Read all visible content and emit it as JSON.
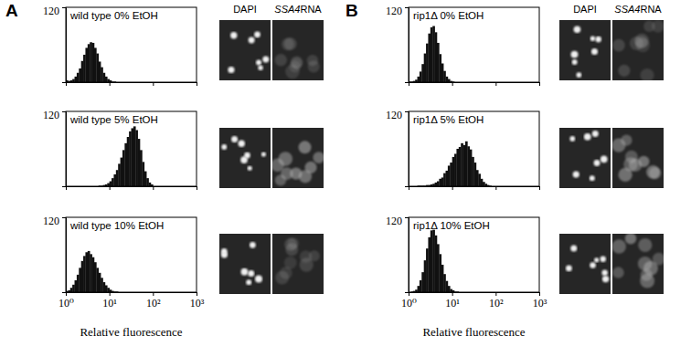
{
  "figure": {
    "panels": [
      {
        "label": "A",
        "image_headers": [
          "DAPI",
          "SSA4 RNA"
        ]
      },
      {
        "label": "B",
        "image_headers": [
          "DAPI",
          "SSA4 RNA"
        ]
      }
    ]
  },
  "chart_data": [
    {
      "type": "histogram",
      "title": "wild type 0% EtOH",
      "color": "#111111",
      "log": "x",
      "bins": [
        1,
        1.122,
        1.259,
        1.413,
        1.585,
        1.778,
        1.995,
        2.239,
        2.512,
        2.818,
        3.162,
        3.548,
        3.981,
        4.467,
        5.012,
        5.623,
        6.31,
        7.079,
        7.943,
        8.913,
        10,
        11.22,
        12.59,
        14.13,
        15.85,
        17.78,
        19.95,
        22.39,
        25.12,
        28.18,
        31.62,
        35.48,
        39.81,
        44.67,
        50.12,
        56.23,
        63.1,
        70.79,
        79.43,
        89.13,
        100
      ],
      "counts": [
        3,
        2,
        3,
        5,
        9,
        15,
        22,
        34,
        44,
        55,
        61,
        64,
        63,
        55,
        46,
        33,
        24,
        15,
        9,
        5,
        3,
        1,
        1,
        0,
        0,
        0,
        0,
        0,
        0,
        0,
        0,
        0,
        0,
        0,
        0,
        0,
        0,
        0,
        0,
        0
      ],
      "xlim": [
        1,
        1000
      ],
      "ylim": [
        0,
        120
      ],
      "xticks": [
        1,
        10,
        100,
        1000
      ],
      "yticks": [
        120
      ],
      "tick_labels": "y"
    },
    {
      "type": "histogram",
      "title": "wild type 5% EtOH",
      "color": "#111111",
      "log": "x",
      "bins": [
        1,
        1.122,
        1.259,
        1.413,
        1.585,
        1.778,
        1.995,
        2.239,
        2.512,
        2.818,
        3.162,
        3.548,
        3.981,
        4.467,
        5.012,
        5.623,
        6.31,
        7.079,
        7.943,
        8.913,
        10,
        11.22,
        12.59,
        14.13,
        15.85,
        17.78,
        19.95,
        22.39,
        25.12,
        28.18,
        31.62,
        35.48,
        39.81,
        44.67,
        50.12,
        56.23,
        63.1,
        70.79,
        79.43,
        89.13,
        100
      ],
      "counts": [
        0,
        0,
        0,
        0,
        0,
        0,
        0,
        0,
        0,
        0,
        0,
        0,
        0,
        0,
        0,
        1,
        1,
        2,
        3,
        5,
        8,
        13,
        19,
        26,
        36,
        46,
        58,
        69,
        79,
        88,
        93,
        96,
        90,
        76,
        58,
        39,
        24,
        13,
        6,
        3
      ],
      "xlim": [
        1,
        1000
      ],
      "ylim": [
        0,
        120
      ],
      "xticks": [
        1,
        10,
        100,
        1000
      ],
      "yticks": [
        120
      ],
      "tick_labels": "y"
    },
    {
      "type": "histogram",
      "title": "wild type 10% EtOH",
      "color": "#111111",
      "log": "x",
      "bins": [
        1,
        1.122,
        1.259,
        1.413,
        1.585,
        1.778,
        1.995,
        2.239,
        2.512,
        2.818,
        3.162,
        3.548,
        3.981,
        4.467,
        5.012,
        5.623,
        6.31,
        7.079,
        7.943,
        8.913,
        10,
        11.22,
        12.59,
        14.13,
        15.85,
        17.78,
        19.95,
        22.39,
        25.12,
        28.18,
        31.62,
        35.48,
        39.81,
        44.67,
        50.12,
        56.23,
        63.1,
        70.79,
        79.43,
        89.13,
        100
      ],
      "counts": [
        2,
        3,
        7,
        12,
        19,
        28,
        39,
        50,
        58,
        64,
        66,
        61,
        56,
        48,
        39,
        31,
        23,
        16,
        11,
        7,
        4,
        2,
        1,
        1,
        0,
        0,
        0,
        0,
        0,
        0,
        0,
        0,
        0,
        0,
        0,
        0,
        0,
        0,
        0,
        0
      ],
      "xlim": [
        1,
        1000
      ],
      "ylim": [
        0,
        120
      ],
      "xticks": [
        {
          "value": 1,
          "label": "10⁰"
        },
        {
          "value": 10,
          "label": "10¹"
        },
        {
          "value": 100,
          "label": "10²"
        },
        {
          "value": 1000,
          "label": "10³"
        }
      ],
      "yticks": [
        120
      ],
      "xlabel": "Relative fluorescence"
    },
    {
      "type": "histogram",
      "title": "rip1Δ 0% EtOH",
      "color": "#111111",
      "log": "x",
      "bins": [
        1,
        1.122,
        1.259,
        1.413,
        1.585,
        1.778,
        1.995,
        2.239,
        2.512,
        2.818,
        3.162,
        3.548,
        3.981,
        4.467,
        5.012,
        5.623,
        6.31,
        7.079,
        7.943,
        8.913,
        10,
        11.22,
        12.59,
        14.13,
        15.85,
        17.78,
        19.95,
        22.39,
        25.12,
        28.18,
        31.62,
        35.48,
        39.81,
        44.67,
        50.12,
        56.23,
        63.1,
        70.79,
        79.43,
        89.13,
        100
      ],
      "counts": [
        1,
        1,
        2,
        4,
        9,
        17,
        29,
        46,
        62,
        78,
        88,
        90,
        80,
        63,
        45,
        30,
        18,
        9,
        5,
        2,
        1,
        0,
        0,
        0,
        0,
        0,
        0,
        0,
        0,
        0,
        0,
        0,
        0,
        0,
        0,
        0,
        0,
        0,
        0,
        0
      ],
      "xlim": [
        1,
        1000
      ],
      "ylim": [
        0,
        120
      ],
      "xticks": [
        1,
        10,
        100,
        1000
      ],
      "yticks": [
        120
      ],
      "tick_labels": "y"
    },
    {
      "type": "histogram",
      "title": "rip1Δ 5% EtOH",
      "color": "#111111",
      "log": "x",
      "bins": [
        1,
        1.122,
        1.259,
        1.413,
        1.585,
        1.778,
        1.995,
        2.239,
        2.512,
        2.818,
        3.162,
        3.548,
        3.981,
        4.467,
        5.012,
        5.623,
        6.31,
        7.079,
        7.943,
        8.913,
        10,
        11.22,
        12.59,
        14.13,
        15.85,
        17.78,
        19.95,
        22.39,
        25.12,
        28.18,
        31.62,
        35.48,
        39.81,
        44.67,
        50.12,
        56.23,
        63.1,
        70.79,
        79.43,
        89.13,
        100
      ],
      "counts": [
        0,
        0,
        0,
        0,
        1,
        1,
        1,
        1,
        2,
        2,
        3,
        4,
        6,
        8,
        12,
        14,
        21,
        25,
        33,
        38,
        47,
        52,
        60,
        63,
        69,
        66,
        72,
        64,
        59,
        47,
        38,
        26,
        20,
        12,
        7,
        4,
        2,
        1,
        0,
        0
      ],
      "xlim": [
        1,
        1000
      ],
      "ylim": [
        0,
        120
      ],
      "xticks": [
        1,
        10,
        100,
        1000
      ],
      "yticks": [
        120
      ],
      "tick_labels": "y"
    },
    {
      "type": "histogram",
      "title": "rip1Δ 10% EtOH",
      "color": "#111111",
      "log": "x",
      "bins": [
        1,
        1.122,
        1.259,
        1.413,
        1.585,
        1.778,
        1.995,
        2.239,
        2.512,
        2.818,
        3.162,
        3.548,
        3.981,
        4.467,
        5.012,
        5.623,
        6.31,
        7.079,
        7.943,
        8.913,
        10,
        11.22,
        12.59,
        14.13,
        15.85,
        17.78,
        19.95,
        22.39,
        25.12,
        28.18,
        31.62,
        35.48,
        39.81,
        44.67,
        50.12,
        56.23,
        63.1,
        70.79,
        79.43,
        89.13,
        100
      ],
      "counts": [
        0,
        1,
        2,
        4,
        10,
        19,
        32,
        51,
        70,
        88,
        99,
        100,
        91,
        77,
        61,
        44,
        29,
        18,
        10,
        5,
        3,
        1,
        1,
        0,
        0,
        0,
        0,
        0,
        0,
        0,
        0,
        0,
        0,
        0,
        0,
        0,
        0,
        0,
        0,
        0
      ],
      "xlim": [
        1,
        1000
      ],
      "ylim": [
        0,
        120
      ],
      "xticks": [
        {
          "value": 1,
          "label": "10⁰"
        },
        {
          "value": 10,
          "label": "10¹"
        },
        {
          "value": 100,
          "label": "10²"
        },
        {
          "value": 1000,
          "label": "10³"
        }
      ],
      "yticks": [
        120
      ],
      "xlabel": "Relative fluorescence"
    }
  ]
}
